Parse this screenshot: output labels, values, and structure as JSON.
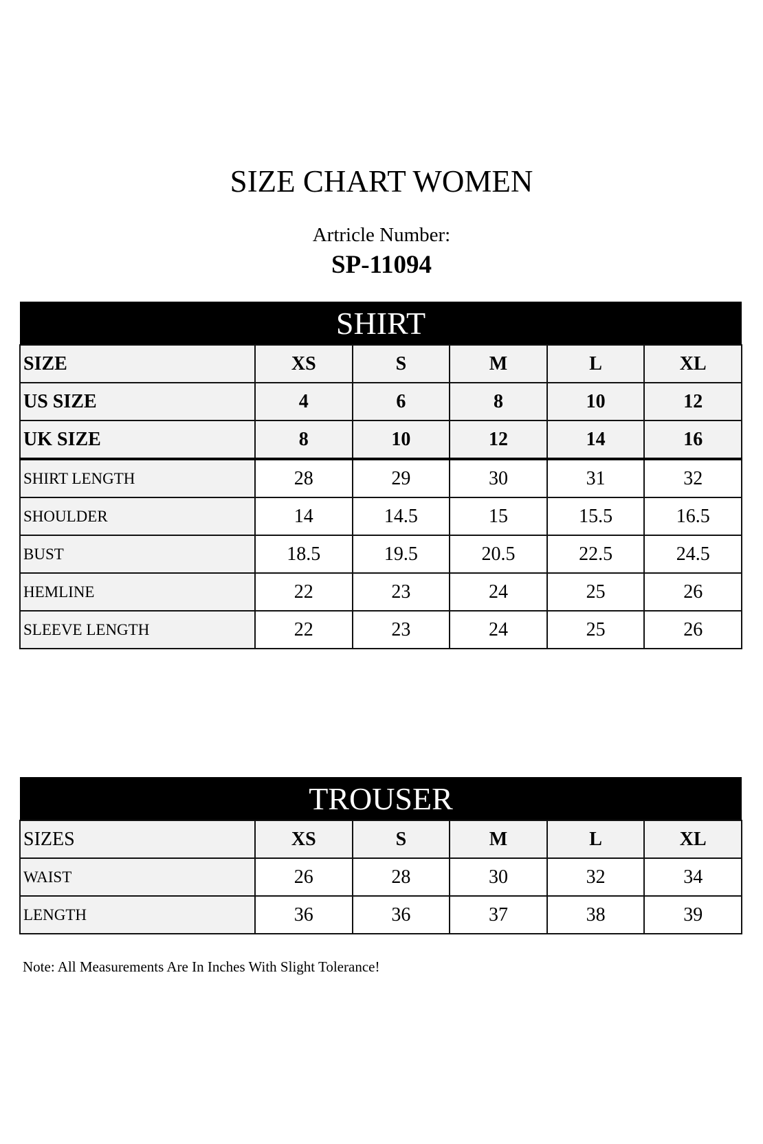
{
  "title": "SIZE CHART WOMEN",
  "article_label": "Artricle Number:",
  "article_number": "SP-11094",
  "shirt": {
    "heading": "SHIRT",
    "header_rows": [
      {
        "label": "SIZE",
        "values": [
          "XS",
          "S",
          "M",
          "L",
          "XL"
        ]
      },
      {
        "label": "US SIZE",
        "values": [
          "4",
          "6",
          "8",
          "10",
          "12"
        ]
      },
      {
        "label": "UK SIZE",
        "values": [
          "8",
          "10",
          "12",
          "14",
          "16"
        ]
      }
    ],
    "rows": [
      {
        "label": "SHIRT LENGTH",
        "values": [
          "28",
          "29",
          "30",
          "31",
          "32"
        ]
      },
      {
        "label": "SHOULDER",
        "values": [
          "14",
          "14.5",
          "15",
          "15.5",
          "16.5"
        ]
      },
      {
        "label": "BUST",
        "values": [
          "18.5",
          "19.5",
          "20.5",
          "22.5",
          "24.5"
        ]
      },
      {
        "label": "HEMLINE",
        "values": [
          "22",
          "23",
          "24",
          "25",
          "26"
        ]
      },
      {
        "label": "SLEEVE LENGTH",
        "values": [
          "22",
          "23",
          "24",
          "25",
          "26"
        ]
      }
    ]
  },
  "trouser": {
    "heading": "TROUSER",
    "header": {
      "label": "SIZES",
      "values": [
        "XS",
        "S",
        "M",
        "L",
        "XL"
      ]
    },
    "rows": [
      {
        "label": "WAIST",
        "values": [
          "26",
          "28",
          "30",
          "32",
          "34"
        ]
      },
      {
        "label": "LENGTH",
        "values": [
          "36",
          "36",
          "37",
          "38",
          "39"
        ]
      }
    ]
  },
  "note": "Note: All Measurements Are In Inches With Slight Tolerance!"
}
